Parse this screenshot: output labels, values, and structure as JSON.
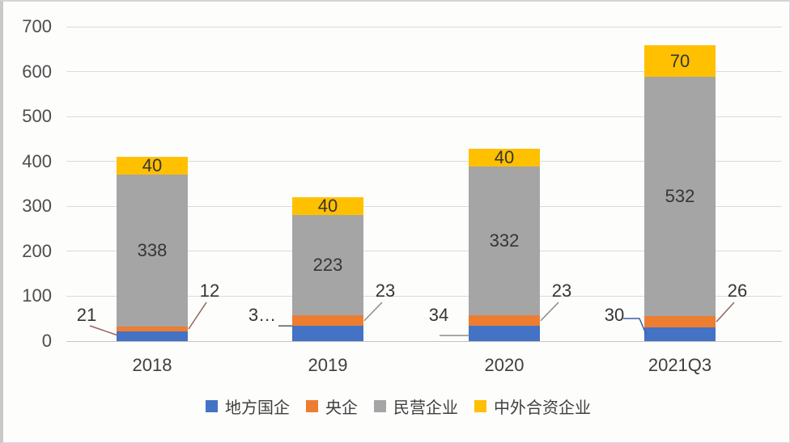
{
  "chart_data": {
    "type": "bar",
    "stacked": true,
    "title": "",
    "xlabel": "",
    "ylabel": "",
    "categories": [
      "2018",
      "2019",
      "2020",
      "2021Q3"
    ],
    "series": [
      {
        "name": "地方国企",
        "color": "#4472C4",
        "values": [
          21,
          34,
          34,
          30
        ],
        "displayed_labels": [
          "21",
          "3…",
          "34",
          "30"
        ],
        "label_placement": "callout-left"
      },
      {
        "name": "央企",
        "color": "#ED7D31",
        "values": [
          12,
          23,
          23,
          26
        ],
        "displayed_labels": [
          "12",
          "23",
          "23",
          "26"
        ],
        "label_placement": "callout-right"
      },
      {
        "name": "民营企业",
        "color": "#A5A5A5",
        "values": [
          338,
          223,
          332,
          532
        ],
        "displayed_labels": [
          "338",
          "223",
          "332",
          "532"
        ],
        "label_placement": "inside"
      },
      {
        "name": "中外合资企业",
        "color": "#FFC000",
        "values": [
          40,
          40,
          40,
          70
        ],
        "displayed_labels": [
          "40",
          "40",
          "40",
          "70"
        ],
        "label_placement": "inside"
      }
    ],
    "ylim": [
      0,
      700
    ],
    "yticks": [
      "0",
      "100",
      "200",
      "300",
      "400",
      "500",
      "600",
      "700"
    ],
    "grid": true,
    "legend_position": "bottom",
    "callout_leaders": [
      {
        "category": 0,
        "series": 0,
        "type": "angled",
        "color": "#96635B"
      },
      {
        "category": 0,
        "series": 1,
        "type": "angled",
        "color": "#96635B"
      },
      {
        "category": 1,
        "series": 0,
        "type": "horizontal",
        "color": "#595959"
      },
      {
        "category": 1,
        "series": 1,
        "type": "angled",
        "color": "#8C8C8C"
      },
      {
        "category": 2,
        "series": 0,
        "type": "underline",
        "color": "#8C8C8C"
      },
      {
        "category": 2,
        "series": 1,
        "type": "angled",
        "color": "#8C8C8C"
      },
      {
        "category": 3,
        "series": 0,
        "type": "elbow",
        "color": "#3B5EA8"
      },
      {
        "category": 3,
        "series": 1,
        "type": "angled",
        "color": "#96635B"
      }
    ],
    "colors": {
      "gridline": "#DADADA",
      "axis_text": "#4D4D4D",
      "label_text": "#353535",
      "background": "#FDFDFC"
    }
  }
}
